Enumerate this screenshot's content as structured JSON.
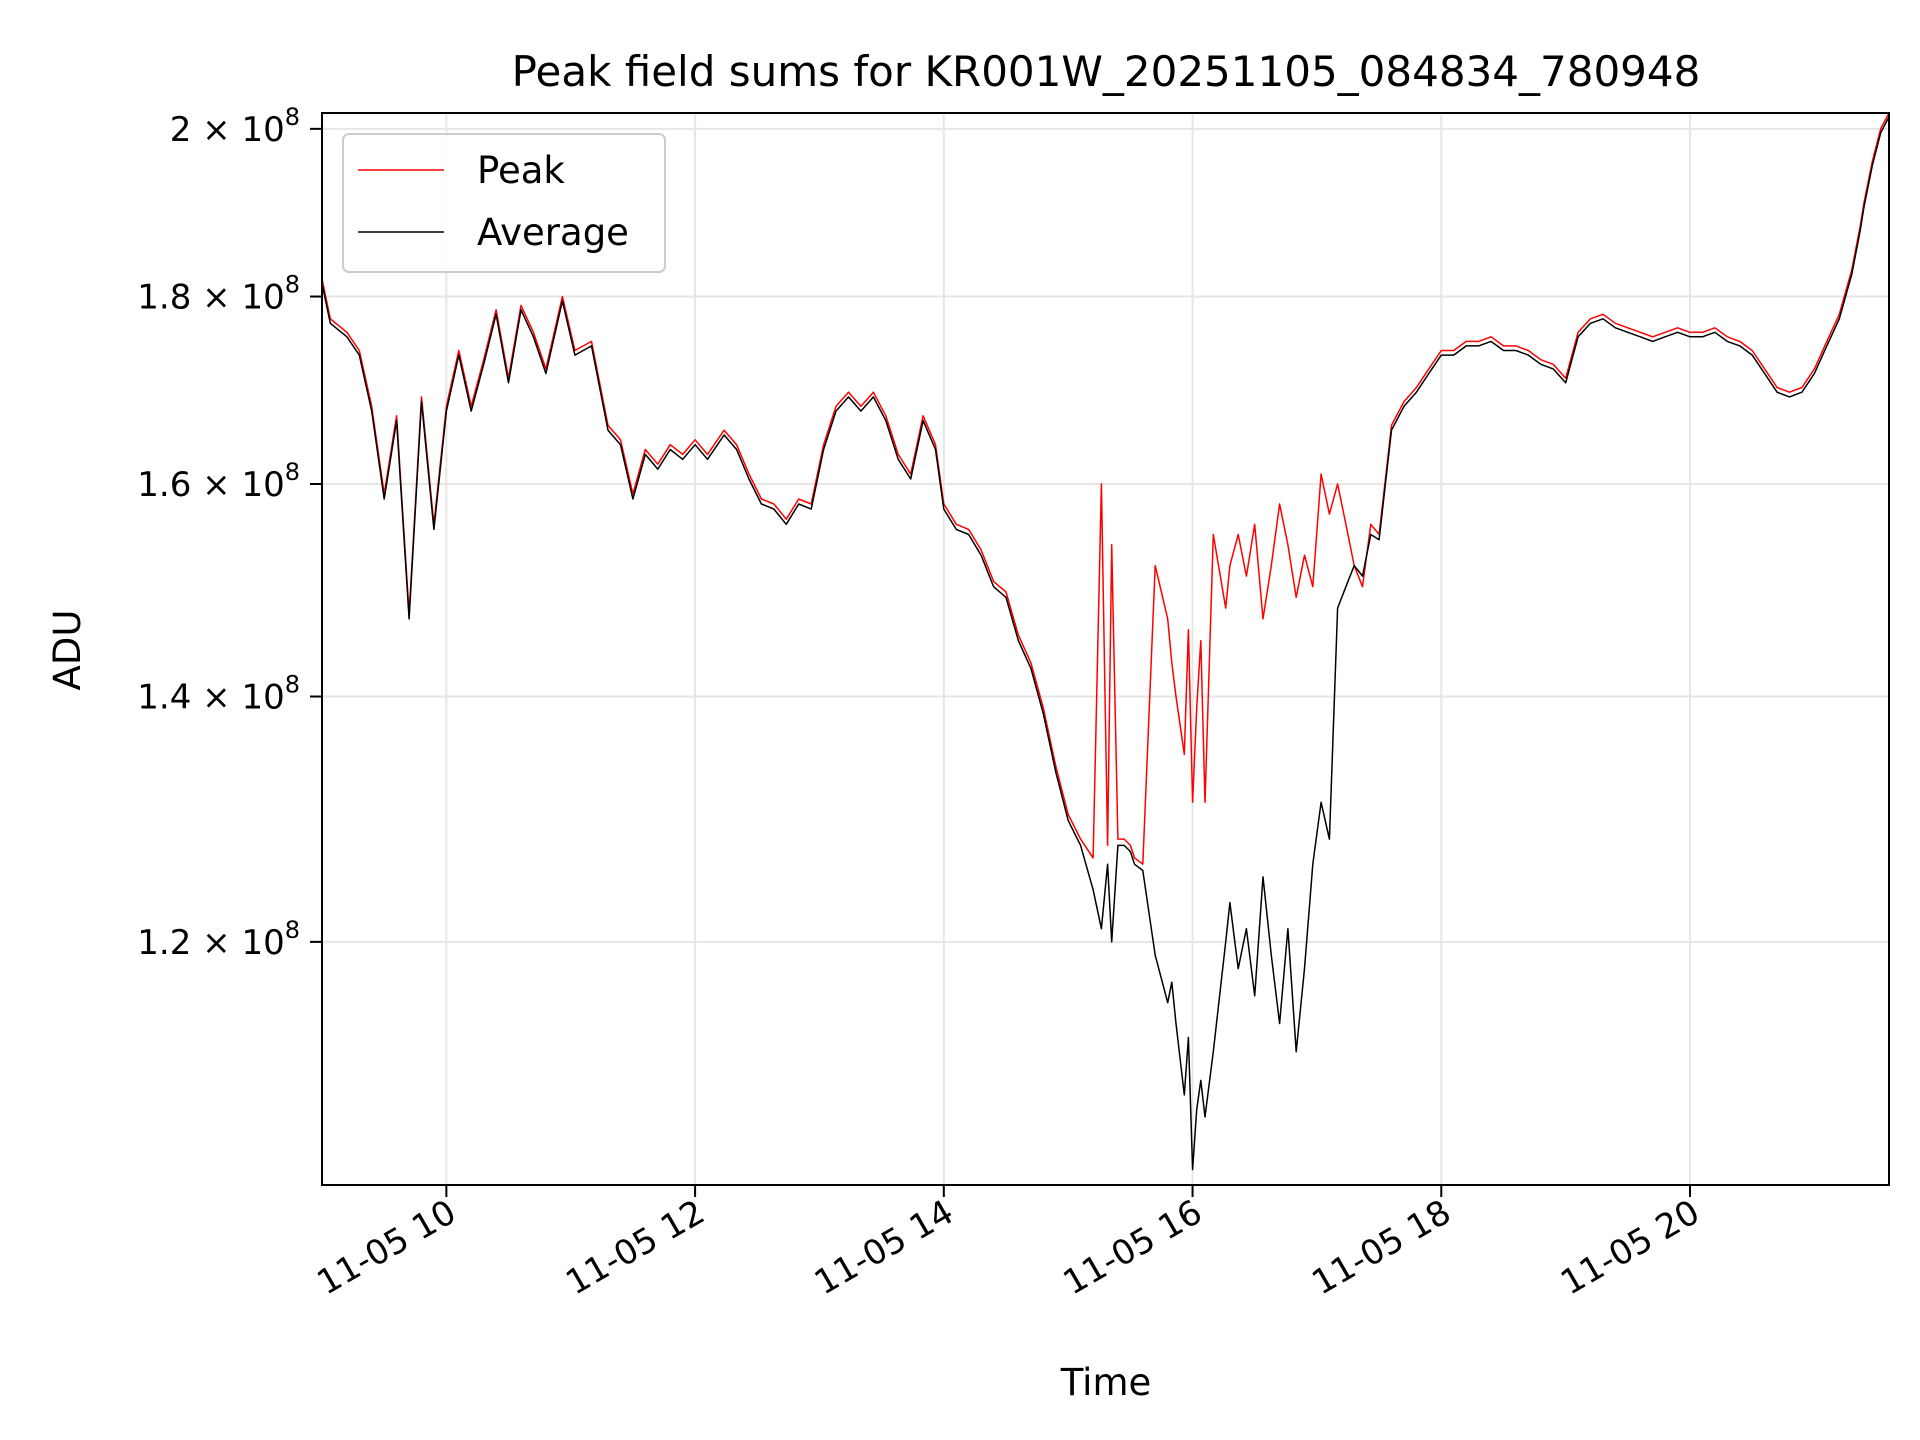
{
  "chart_data": {
    "type": "line",
    "title": "Peak field sums for KR001W_20251105_084834_780948",
    "xlabel": "Time",
    "ylabel": "ADU",
    "yscale": "log",
    "grid": true,
    "legend_position": "upper left",
    "xlim": [
      "2025-11-05 09:00",
      "2025-11-05 21:36"
    ],
    "ylim": [
      103000000,
      202000000
    ],
    "x_ticks": [
      {
        "at": "2025-11-05 10:00",
        "label": "11-05 10"
      },
      {
        "at": "2025-11-05 12:00",
        "label": "11-05 12"
      },
      {
        "at": "2025-11-05 14:00",
        "label": "11-05 14"
      },
      {
        "at": "2025-11-05 16:00",
        "label": "11-05 16"
      },
      {
        "at": "2025-11-05 18:00",
        "label": "11-05 18"
      },
      {
        "at": "2025-11-05 20:00",
        "label": "11-05 20"
      }
    ],
    "y_ticks": [
      {
        "value": 120000000,
        "mantissa": "1.2",
        "exponent": "8"
      },
      {
        "value": 140000000,
        "mantissa": "1.4",
        "exponent": "8"
      },
      {
        "value": 160000000,
        "mantissa": "1.6",
        "exponent": "8"
      },
      {
        "value": 180000000,
        "mantissa": "1.8",
        "exponent": "8"
      },
      {
        "value": 200000000,
        "mantissa": "2",
        "exponent": "8"
      }
    ],
    "series": [
      {
        "name": "Peak",
        "color": "#ff0000",
        "x": [
          "2025-11-05 09:00",
          "2025-11-05 09:04",
          "2025-11-05 09:12",
          "2025-11-05 09:18",
          "2025-11-05 09:24",
          "2025-11-05 09:30",
          "2025-11-05 09:36",
          "2025-11-05 09:42",
          "2025-11-05 09:48",
          "2025-11-05 09:54",
          "2025-11-05 10:00",
          "2025-11-05 10:06",
          "2025-11-05 10:12",
          "2025-11-05 10:18",
          "2025-11-05 10:24",
          "2025-11-05 10:30",
          "2025-11-05 10:36",
          "2025-11-05 10:42",
          "2025-11-05 10:48",
          "2025-11-05 10:56",
          "2025-11-05 11:02",
          "2025-11-05 11:10",
          "2025-11-05 11:18",
          "2025-11-05 11:24",
          "2025-11-05 11:30",
          "2025-11-05 11:36",
          "2025-11-05 11:42",
          "2025-11-05 11:48",
          "2025-11-05 11:54",
          "2025-11-05 12:00",
          "2025-11-05 12:06",
          "2025-11-05 12:14",
          "2025-11-05 12:20",
          "2025-11-05 12:26",
          "2025-11-05 12:32",
          "2025-11-05 12:38",
          "2025-11-05 12:44",
          "2025-11-05 12:50",
          "2025-11-05 12:56",
          "2025-11-05 13:02",
          "2025-11-05 13:08",
          "2025-11-05 13:14",
          "2025-11-05 13:20",
          "2025-11-05 13:26",
          "2025-11-05 13:32",
          "2025-11-05 13:38",
          "2025-11-05 13:44",
          "2025-11-05 13:50",
          "2025-11-05 13:56",
          "2025-11-05 14:00",
          "2025-11-05 14:06",
          "2025-11-05 14:12",
          "2025-11-05 14:18",
          "2025-11-05 14:24",
          "2025-11-05 14:30",
          "2025-11-05 14:36",
          "2025-11-05 14:42",
          "2025-11-05 14:48",
          "2025-11-05 14:54",
          "2025-11-05 15:00",
          "2025-11-05 15:06",
          "2025-11-05 15:12",
          "2025-11-05 15:16",
          "2025-11-05 15:19",
          "2025-11-05 15:21",
          "2025-11-05 15:24",
          "2025-11-05 15:27",
          "2025-11-05 15:30",
          "2025-11-05 15:32",
          "2025-11-05 15:36",
          "2025-11-05 15:42",
          "2025-11-05 15:48",
          "2025-11-05 15:50",
          "2025-11-05 15:52",
          "2025-11-05 15:56",
          "2025-11-05 15:58",
          "2025-11-05 16:00",
          "2025-11-05 16:02",
          "2025-11-05 16:04",
          "2025-11-05 16:06",
          "2025-11-05 16:10",
          "2025-11-05 16:16",
          "2025-11-05 16:18",
          "2025-11-05 16:22",
          "2025-11-05 16:26",
          "2025-11-05 16:30",
          "2025-11-05 16:34",
          "2025-11-05 16:38",
          "2025-11-05 16:42",
          "2025-11-05 16:46",
          "2025-11-05 16:50",
          "2025-11-05 16:54",
          "2025-11-05 16:58",
          "2025-11-05 17:02",
          "2025-11-05 17:06",
          "2025-11-05 17:10",
          "2025-11-05 17:14",
          "2025-11-05 17:18",
          "2025-11-05 17:22",
          "2025-11-05 17:26",
          "2025-11-05 17:30",
          "2025-11-05 17:36",
          "2025-11-05 17:42",
          "2025-11-05 17:48",
          "2025-11-05 17:54",
          "2025-11-05 18:00",
          "2025-11-05 18:06",
          "2025-11-05 18:12",
          "2025-11-05 18:18",
          "2025-11-05 18:24",
          "2025-11-05 18:30",
          "2025-11-05 18:36",
          "2025-11-05 18:42",
          "2025-11-05 18:48",
          "2025-11-05 18:54",
          "2025-11-05 19:00",
          "2025-11-05 19:06",
          "2025-11-05 19:12",
          "2025-11-05 19:18",
          "2025-11-05 19:24",
          "2025-11-05 19:30",
          "2025-11-05 19:36",
          "2025-11-05 19:42",
          "2025-11-05 19:48",
          "2025-11-05 19:54",
          "2025-11-05 20:00",
          "2025-11-05 20:06",
          "2025-11-05 20:12",
          "2025-11-05 20:18",
          "2025-11-05 20:24",
          "2025-11-05 20:30",
          "2025-11-05 20:36",
          "2025-11-05 20:42",
          "2025-11-05 20:48",
          "2025-11-05 20:54",
          "2025-11-05 21:00",
          "2025-11-05 21:06",
          "2025-11-05 21:12",
          "2025-11-05 21:18",
          "2025-11-05 21:22",
          "2025-11-05 21:24",
          "2025-11-05 21:28",
          "2025-11-05 21:32",
          "2025-11-05 21:36"
        ],
        "values": [
          182000000,
          177500000,
          176000000,
          174000000,
          168000000,
          159000000,
          167000000,
          147500000,
          169000000,
          156000000,
          168000000,
          174000000,
          168000000,
          173000000,
          178500000,
          171000000,
          179000000,
          176000000,
          172000000,
          180000000,
          174000000,
          175000000,
          166000000,
          164500000,
          159000000,
          163500000,
          162000000,
          164000000,
          163000000,
          164500000,
          163000000,
          165500000,
          164000000,
          161000000,
          158500000,
          158000000,
          156500000,
          158500000,
          158000000,
          164000000,
          168000000,
          169500000,
          168000000,
          169500000,
          167000000,
          163000000,
          161000000,
          167000000,
          164000000,
          158000000,
          156000000,
          155500000,
          153500000,
          150500000,
          149500000,
          145500000,
          143000000,
          139000000,
          134000000,
          130000000,
          128000000,
          126500000,
          160000000,
          127500000,
          154000000,
          128000000,
          128000000,
          127500000,
          126500000,
          126000000,
          152000000,
          147000000,
          143000000,
          140000000,
          135000000,
          146000000,
          131000000,
          139000000,
          145000000,
          131000000,
          155000000,
          148000000,
          152000000,
          155000000,
          151000000,
          156000000,
          147000000,
          152000000,
          158000000,
          154000000,
          149000000,
          153000000,
          150000000,
          161000000,
          157000000,
          160000000,
          156000000,
          152000000,
          150000000,
          156000000,
          155000000,
          166000000,
          168500000,
          170000000,
          172000000,
          174000000,
          174000000,
          175000000,
          175000000,
          175500000,
          174500000,
          174500000,
          174000000,
          173000000,
          172500000,
          171000000,
          176000000,
          177500000,
          178000000,
          177000000,
          176500000,
          176000000,
          175500000,
          176000000,
          176500000,
          176000000,
          176000000,
          176500000,
          175500000,
          175000000,
          174000000,
          172000000,
          170000000,
          169500000,
          170000000,
          172000000,
          175000000,
          178000000,
          183000000,
          188000000,
          191000000,
          196000000,
          200000000,
          202000000
        ]
      },
      {
        "name": "Average",
        "color": "#000000",
        "x": [
          "2025-11-05 09:00",
          "2025-11-05 09:04",
          "2025-11-05 09:12",
          "2025-11-05 09:18",
          "2025-11-05 09:24",
          "2025-11-05 09:30",
          "2025-11-05 09:36",
          "2025-11-05 09:42",
          "2025-11-05 09:48",
          "2025-11-05 09:54",
          "2025-11-05 10:00",
          "2025-11-05 10:06",
          "2025-11-05 10:12",
          "2025-11-05 10:18",
          "2025-11-05 10:24",
          "2025-11-05 10:30",
          "2025-11-05 10:36",
          "2025-11-05 10:42",
          "2025-11-05 10:48",
          "2025-11-05 10:56",
          "2025-11-05 11:02",
          "2025-11-05 11:10",
          "2025-11-05 11:18",
          "2025-11-05 11:24",
          "2025-11-05 11:30",
          "2025-11-05 11:36",
          "2025-11-05 11:42",
          "2025-11-05 11:48",
          "2025-11-05 11:54",
          "2025-11-05 12:00",
          "2025-11-05 12:06",
          "2025-11-05 12:14",
          "2025-11-05 12:20",
          "2025-11-05 12:26",
          "2025-11-05 12:32",
          "2025-11-05 12:38",
          "2025-11-05 12:44",
          "2025-11-05 12:50",
          "2025-11-05 12:56",
          "2025-11-05 13:02",
          "2025-11-05 13:08",
          "2025-11-05 13:14",
          "2025-11-05 13:20",
          "2025-11-05 13:26",
          "2025-11-05 13:32",
          "2025-11-05 13:38",
          "2025-11-05 13:44",
          "2025-11-05 13:50",
          "2025-11-05 13:56",
          "2025-11-05 14:00",
          "2025-11-05 14:06",
          "2025-11-05 14:12",
          "2025-11-05 14:18",
          "2025-11-05 14:24",
          "2025-11-05 14:30",
          "2025-11-05 14:36",
          "2025-11-05 14:42",
          "2025-11-05 14:48",
          "2025-11-05 14:54",
          "2025-11-05 15:00",
          "2025-11-05 15:06",
          "2025-11-05 15:12",
          "2025-11-05 15:16",
          "2025-11-05 15:19",
          "2025-11-05 15:21",
          "2025-11-05 15:24",
          "2025-11-05 15:27",
          "2025-11-05 15:30",
          "2025-11-05 15:32",
          "2025-11-05 15:36",
          "2025-11-05 15:42",
          "2025-11-05 15:48",
          "2025-11-05 15:50",
          "2025-11-05 15:52",
          "2025-11-05 15:56",
          "2025-11-05 15:58",
          "2025-11-05 16:00",
          "2025-11-05 16:02",
          "2025-11-05 16:04",
          "2025-11-05 16:06",
          "2025-11-05 16:10",
          "2025-11-05 16:16",
          "2025-11-05 16:18",
          "2025-11-05 16:22",
          "2025-11-05 16:26",
          "2025-11-05 16:30",
          "2025-11-05 16:34",
          "2025-11-05 16:38",
          "2025-11-05 16:42",
          "2025-11-05 16:46",
          "2025-11-05 16:50",
          "2025-11-05 16:54",
          "2025-11-05 16:58",
          "2025-11-05 17:02",
          "2025-11-05 17:06",
          "2025-11-05 17:10",
          "2025-11-05 17:14",
          "2025-11-05 17:18",
          "2025-11-05 17:22",
          "2025-11-05 17:26",
          "2025-11-05 17:30",
          "2025-11-05 17:36",
          "2025-11-05 17:42",
          "2025-11-05 17:48",
          "2025-11-05 17:54",
          "2025-11-05 18:00",
          "2025-11-05 18:06",
          "2025-11-05 18:12",
          "2025-11-05 18:18",
          "2025-11-05 18:24",
          "2025-11-05 18:30",
          "2025-11-05 18:36",
          "2025-11-05 18:42",
          "2025-11-05 18:48",
          "2025-11-05 18:54",
          "2025-11-05 19:00",
          "2025-11-05 19:06",
          "2025-11-05 19:12",
          "2025-11-05 19:18",
          "2025-11-05 19:24",
          "2025-11-05 19:30",
          "2025-11-05 19:36",
          "2025-11-05 19:42",
          "2025-11-05 19:48",
          "2025-11-05 19:54",
          "2025-11-05 20:00",
          "2025-11-05 20:06",
          "2025-11-05 20:12",
          "2025-11-05 20:18",
          "2025-11-05 20:24",
          "2025-11-05 20:30",
          "2025-11-05 20:36",
          "2025-11-05 20:42",
          "2025-11-05 20:48",
          "2025-11-05 20:54",
          "2025-11-05 21:00",
          "2025-11-05 21:06",
          "2025-11-05 21:12",
          "2025-11-05 21:18",
          "2025-11-05 21:22",
          "2025-11-05 21:24",
          "2025-11-05 21:28",
          "2025-11-05 21:32",
          "2025-11-05 21:36"
        ],
        "values": [
          181500000,
          177000000,
          175500000,
          173500000,
          167500000,
          158500000,
          166500000,
          147000000,
          168500000,
          155500000,
          167500000,
          173500000,
          167500000,
          172500000,
          178000000,
          170500000,
          178500000,
          175500000,
          171500000,
          179500000,
          173500000,
          174500000,
          165500000,
          164000000,
          158500000,
          163000000,
          161500000,
          163500000,
          162500000,
          164000000,
          162500000,
          165000000,
          163500000,
          160500000,
          158000000,
          157500000,
          156000000,
          158000000,
          157500000,
          163500000,
          167500000,
          169000000,
          167500000,
          169000000,
          166500000,
          162500000,
          160500000,
          166500000,
          163500000,
          157500000,
          155500000,
          155000000,
          153000000,
          150000000,
          149000000,
          145000000,
          142500000,
          138500000,
          133500000,
          129500000,
          127500000,
          124000000,
          121000000,
          126000000,
          120000000,
          127500000,
          127500000,
          127000000,
          126000000,
          125500000,
          119000000,
          115500000,
          117000000,
          114000000,
          109000000,
          113000000,
          104000000,
          108000000,
          110000000,
          107500000,
          112000000,
          120000000,
          123000000,
          118000000,
          121000000,
          116000000,
          125000000,
          119000000,
          114000000,
          121000000,
          112000000,
          118000000,
          126000000,
          131000000,
          128000000,
          148000000,
          150000000,
          152000000,
          151000000,
          155000000,
          154500000,
          165500000,
          168000000,
          169500000,
          171500000,
          173500000,
          173500000,
          174500000,
          174500000,
          175000000,
          174000000,
          174000000,
          173500000,
          172500000,
          172000000,
          170500000,
          175500000,
          177000000,
          177500000,
          176500000,
          176000000,
          175500000,
          175000000,
          175500000,
          176000000,
          175500000,
          175500000,
          176000000,
          175000000,
          174500000,
          173500000,
          171500000,
          169500000,
          169000000,
          169500000,
          171500000,
          174500000,
          177500000,
          182500000,
          187500000,
          190500000,
          195500000,
          199500000,
          201500000
        ]
      }
    ]
  }
}
